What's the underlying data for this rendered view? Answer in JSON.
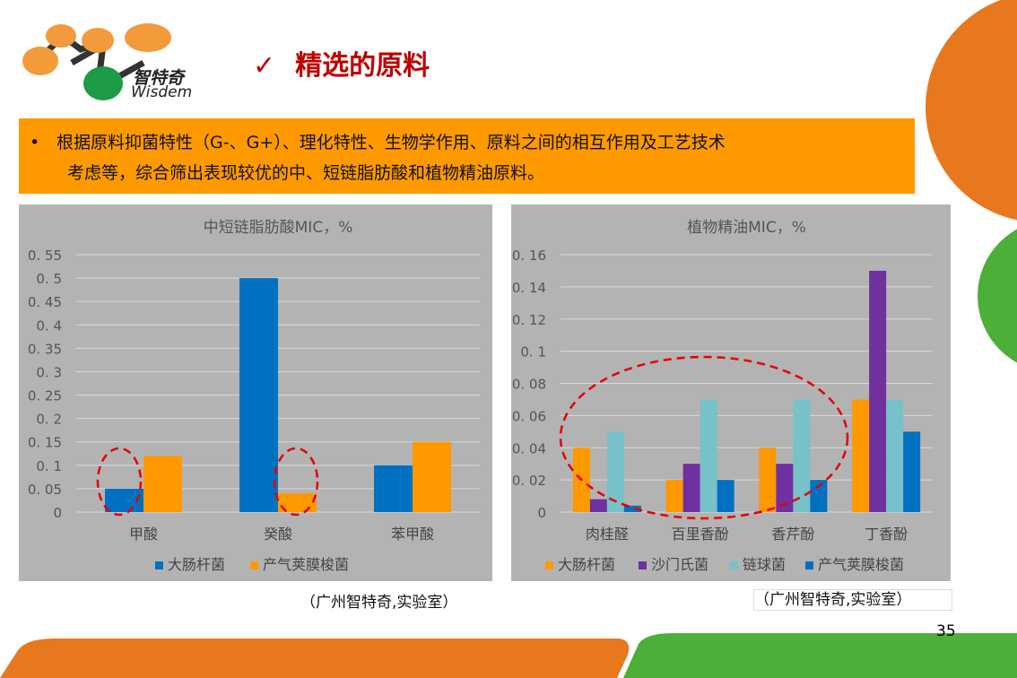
{
  "logo": {
    "cn": "智特奇",
    "en": "Wisdem"
  },
  "header": {
    "check_icon": "✓",
    "title": "精选的原料"
  },
  "banner": {
    "bullet": "•",
    "line1": "根据原料抑菌特性（G-、G+）、理化特性、生物学作用、原料之间的相互作用及工艺技术",
    "line2": "考虑等，综合筛出表现较优的中、短链脂肪酸和植物精油原料。"
  },
  "chart_data": [
    {
      "type": "bar",
      "title": "中短链脂肪酸MIC，%",
      "categories": [
        "甲酸",
        "癸酸",
        "苯甲酸"
      ],
      "series": [
        {
          "name": "大肠杆菌",
          "color": "#0070c0",
          "values": [
            0.05,
            0.5,
            0.1
          ]
        },
        {
          "name": "产气荚膜梭菌",
          "color": "#ff9900",
          "values": [
            0.12,
            0.04,
            0.15
          ]
        }
      ],
      "ylim": [
        0,
        0.55
      ],
      "yticks": [
        "0",
        "0.05",
        "0.1",
        "0.15",
        "0.2",
        "0.25",
        "0.3",
        "0.35",
        "0.4",
        "0.45",
        "0.5",
        "0.55"
      ],
      "legend": "bottom",
      "grid": true
    },
    {
      "type": "bar",
      "title": "植物精油MIC，%",
      "categories": [
        "肉桂醛",
        "百里香酚",
        "香芹酚",
        "丁香酚"
      ],
      "series": [
        {
          "name": "大肠杆菌",
          "color": "#ff9900",
          "values": [
            0.04,
            0.02,
            0.04,
            0.07
          ]
        },
        {
          "name": "沙门氏菌",
          "color": "#7030a0",
          "values": [
            0.008,
            0.03,
            0.03,
            0.15
          ]
        },
        {
          "name": "链球菌",
          "color": "#77c1c9",
          "values": [
            0.05,
            0.07,
            0.07,
            0.07
          ]
        },
        {
          "name": "产气荚膜梭菌",
          "color": "#0070c0",
          "values": [
            0.004,
            0.02,
            0.02,
            0.05
          ]
        }
      ],
      "ylim": [
        0,
        0.16
      ],
      "yticks": [
        "0",
        "0.02",
        "0.04",
        "0.06",
        "0.08",
        "0.1",
        "0.12",
        "0.14",
        "0.16"
      ],
      "legend": "bottom",
      "grid": true
    }
  ],
  "notes": {
    "left": "（广州智特奇,实验室）",
    "right": "（广州智特奇,实验室）"
  },
  "page_number": "35"
}
